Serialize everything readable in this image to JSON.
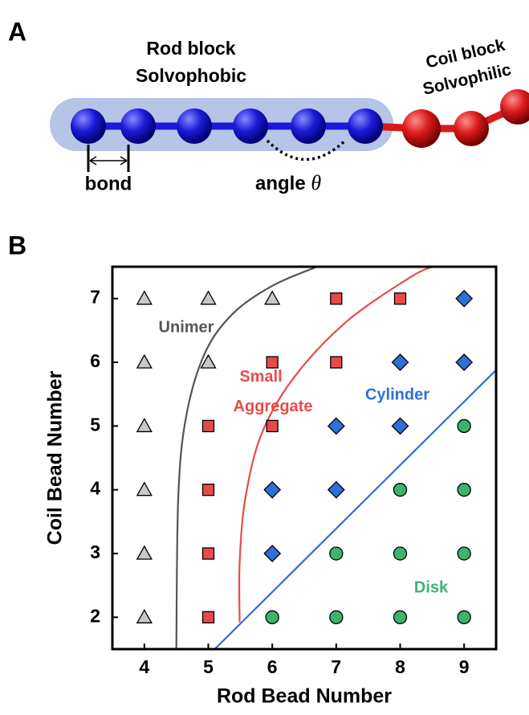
{
  "panel_a": {
    "label": "A",
    "rod_title": "Rod block",
    "rod_subtitle": "Solvophobic",
    "coil_title": "Coil block",
    "coil_subtitle": "Solvophilic",
    "bond": "bond",
    "angle": "angle",
    "angle_symbol": "θ"
  },
  "chart_data": {
    "type": "scatter",
    "panel_label": "B",
    "xlabel": "Rod Bead Number",
    "ylabel": "Coil Bead Number",
    "xlim": [
      3.5,
      9.5
    ],
    "ylim": [
      1.5,
      7.5
    ],
    "xticks": [
      4,
      5,
      6,
      7,
      8,
      9
    ],
    "yticks": [
      2,
      3,
      4,
      5,
      6,
      7
    ],
    "series": [
      {
        "name": "Unimer",
        "color": "#c8c8c8",
        "marker": "triangle",
        "label_color": "#555555",
        "x": [
          4,
          4,
          4,
          4,
          4,
          4,
          5,
          5,
          6
        ],
        "y": [
          2,
          3,
          4,
          5,
          6,
          7,
          6,
          7,
          7
        ]
      },
      {
        "name": "Small Aggregate",
        "color": "#e84a4a",
        "marker": "square",
        "label_color": "#e84a4a",
        "x": [
          5,
          5,
          5,
          5,
          6,
          6,
          7,
          7,
          8
        ],
        "y": [
          2,
          3,
          4,
          5,
          5,
          6,
          6,
          7,
          7
        ]
      },
      {
        "name": "Cylinder",
        "color": "#2f6fd8",
        "marker": "diamond",
        "label_color": "#2f6fd8",
        "x": [
          6,
          6,
          7,
          7,
          8,
          8,
          9,
          9
        ],
        "y": [
          3,
          4,
          4,
          5,
          5,
          6,
          6,
          7
        ]
      },
      {
        "name": "Disk",
        "color": "#3cb371",
        "marker": "circle",
        "label_color": "#3cb371",
        "x": [
          6,
          7,
          8,
          9,
          7,
          8,
          9,
          8,
          9,
          9
        ],
        "y": [
          2,
          2,
          2,
          2,
          3,
          3,
          3,
          4,
          4,
          5
        ]
      }
    ],
    "boundaries": [
      {
        "color": "#555555",
        "x": [
          4.5,
          4.53,
          4.65,
          4.94,
          5.38,
          6.0,
          6.7
        ],
        "y": [
          1.5,
          3.87,
          5.13,
          6.13,
          6.76,
          7.2,
          7.5
        ]
      },
      {
        "color": "#e84a4a",
        "x": [
          5.49,
          5.49,
          5.58,
          5.83,
          6.33,
          7.15,
          8.15,
          8.5
        ],
        "y": [
          1.92,
          2.86,
          3.87,
          4.87,
          5.75,
          6.63,
          7.33,
          7.5
        ]
      },
      {
        "color": "#2f6fd8",
        "x": [
          5.1,
          9.5
        ],
        "y": [
          1.5,
          5.88
        ]
      }
    ]
  }
}
